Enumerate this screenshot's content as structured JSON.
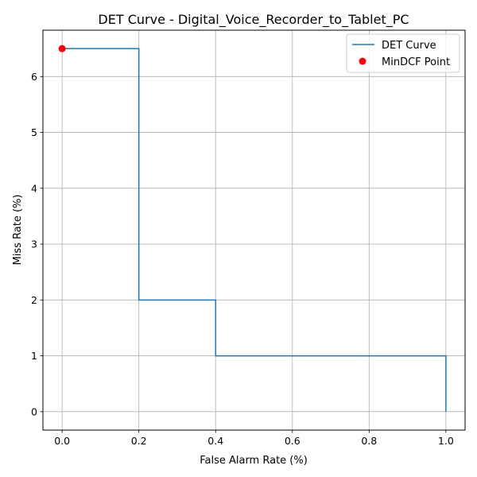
{
  "chart_data": {
    "type": "line",
    "title": "DET Curve - Digital_Voice_Recorder_to_Tablet_PC",
    "xlabel": "False Alarm Rate (%)",
    "ylabel": "Miss Rate (%)",
    "xlim": [
      -0.05,
      1.05
    ],
    "ylim": [
      -0.33,
      6.83
    ],
    "xticks": [
      0.0,
      0.2,
      0.4,
      0.6,
      0.8,
      1.0
    ],
    "xtick_labels": [
      "0.0",
      "0.2",
      "0.4",
      "0.6",
      "0.8",
      "1.0"
    ],
    "yticks": [
      0,
      1,
      2,
      3,
      4,
      5,
      6
    ],
    "ytick_labels": [
      "0",
      "1",
      "2",
      "3",
      "4",
      "5",
      "6"
    ],
    "grid": true,
    "legend_position": "top-right",
    "series": [
      {
        "name": "DET Curve",
        "type": "line",
        "color": "#1f77b4",
        "x": [
          0.0,
          0.2,
          0.2,
          0.4,
          0.4,
          1.0,
          1.0
        ],
        "y": [
          6.5,
          6.5,
          2.0,
          2.0,
          1.0,
          1.0,
          0.0
        ]
      },
      {
        "name": "MinDCF Point",
        "type": "scatter",
        "color": "#ff0000",
        "x": [
          0.0
        ],
        "y": [
          6.5
        ]
      }
    ]
  }
}
